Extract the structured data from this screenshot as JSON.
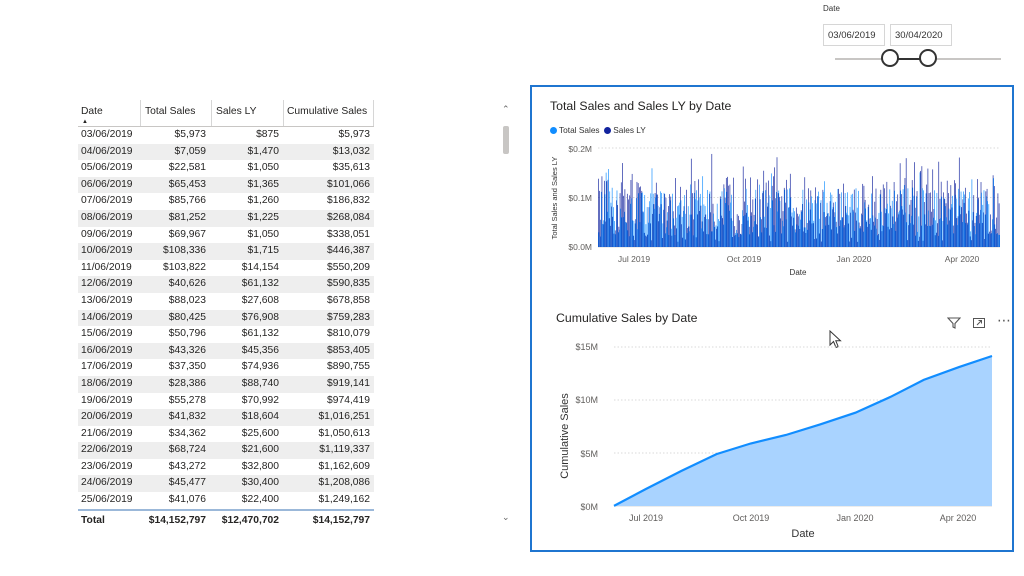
{
  "slicer": {
    "title": "Date",
    "start": "03/06/2019",
    "end": "30/04/2020"
  },
  "table": {
    "headers": [
      "Date",
      "Total Sales",
      "Sales LY",
      "Cumulative Sales"
    ],
    "rows": [
      [
        "03/06/2019",
        "$5,973",
        "$875",
        "$5,973"
      ],
      [
        "04/06/2019",
        "$7,059",
        "$1,470",
        "$13,032"
      ],
      [
        "05/06/2019",
        "$22,581",
        "$1,050",
        "$35,613"
      ],
      [
        "06/06/2019",
        "$65,453",
        "$1,365",
        "$101,066"
      ],
      [
        "07/06/2019",
        "$85,766",
        "$1,260",
        "$186,832"
      ],
      [
        "08/06/2019",
        "$81,252",
        "$1,225",
        "$268,084"
      ],
      [
        "09/06/2019",
        "$69,967",
        "$1,050",
        "$338,051"
      ],
      [
        "10/06/2019",
        "$108,336",
        "$1,715",
        "$446,387"
      ],
      [
        "11/06/2019",
        "$103,822",
        "$14,154",
        "$550,209"
      ],
      [
        "12/06/2019",
        "$40,626",
        "$61,132",
        "$590,835"
      ],
      [
        "13/06/2019",
        "$88,023",
        "$27,608",
        "$678,858"
      ],
      [
        "14/06/2019",
        "$80,425",
        "$76,908",
        "$759,283"
      ],
      [
        "15/06/2019",
        "$50,796",
        "$61,132",
        "$810,079"
      ],
      [
        "16/06/2019",
        "$43,326",
        "$45,356",
        "$853,405"
      ],
      [
        "17/06/2019",
        "$37,350",
        "$74,936",
        "$890,755"
      ],
      [
        "18/06/2019",
        "$28,386",
        "$88,740",
        "$919,141"
      ],
      [
        "19/06/2019",
        "$55,278",
        "$70,992",
        "$974,419"
      ],
      [
        "20/06/2019",
        "$41,832",
        "$18,604",
        "$1,016,251"
      ],
      [
        "21/06/2019",
        "$34,362",
        "$25,600",
        "$1,050,613"
      ],
      [
        "22/06/2019",
        "$68,724",
        "$21,600",
        "$1,119,337"
      ],
      [
        "23/06/2019",
        "$43,272",
        "$32,800",
        "$1,162,609"
      ],
      [
        "24/06/2019",
        "$45,477",
        "$30,400",
        "$1,208,086"
      ],
      [
        "25/06/2019",
        "$41,076",
        "$22,400",
        "$1,249,162"
      ]
    ],
    "total": [
      "Total",
      "$14,152,797",
      "$12,470,702",
      "$14,152,797"
    ]
  },
  "icons": {
    "sort": "sort-ascending-icon",
    "scroll_up": "chevron-up-icon",
    "scroll_down": "chevron-down-icon",
    "filter": "filter-icon",
    "focus": "focus-mode-icon",
    "more": "more-options-icon",
    "cursor": "mouse-pointer-icon"
  },
  "colors": {
    "total_sales": "#118dff",
    "sales_ly": "#12239e",
    "cumulative_line": "#118dff",
    "cumulative_area": "#a9d3ff",
    "selection_border": "#1f75d0"
  },
  "chart_data": [
    {
      "type": "bar",
      "title": "Total Sales and Sales LY by Date",
      "xlabel": "Date",
      "ylabel": "Total Sales and Sales LY",
      "legend": [
        "Total Sales",
        "Sales LY"
      ],
      "legend_position": "top-left",
      "y_ticks": [
        "$0.0M",
        "$0.1M",
        "$0.2M"
      ],
      "ylim": [
        0,
        0.2
      ],
      "x_ticks": [
        "Jul 2019",
        "Oct 2019",
        "Jan 2020",
        "Apr 2020"
      ],
      "x_range": [
        "2019-06-03",
        "2020-04-30"
      ],
      "series": [
        {
          "name": "Total Sales",
          "typical_range_M": [
            0.02,
            0.12
          ],
          "peak_M": 0.17
        },
        {
          "name": "Sales LY",
          "typical_range_M": [
            0.01,
            0.16
          ],
          "peak_M": 0.19
        }
      ]
    },
    {
      "type": "area",
      "title": "Cumulative Sales by Date",
      "xlabel": "Date",
      "ylabel": "Cumulative Sales",
      "y_ticks": [
        "$0M",
        "$5M",
        "$10M",
        "$15M"
      ],
      "ylim": [
        0,
        15
      ],
      "x_ticks": [
        "Jul 2019",
        "Oct 2019",
        "Jan 2020",
        "Apr 2020"
      ],
      "x": [
        "2019-06-03",
        "2019-07-01",
        "2019-08-01",
        "2019-09-01",
        "2019-10-01",
        "2019-11-01",
        "2019-12-01",
        "2020-01-01",
        "2020-02-01",
        "2020-03-01",
        "2020-04-01",
        "2020-04-30"
      ],
      "values": [
        0.006,
        1.6,
        3.3,
        4.9,
        5.9,
        6.7,
        7.7,
        8.8,
        10.3,
        11.9,
        13.1,
        14.15
      ]
    }
  ]
}
